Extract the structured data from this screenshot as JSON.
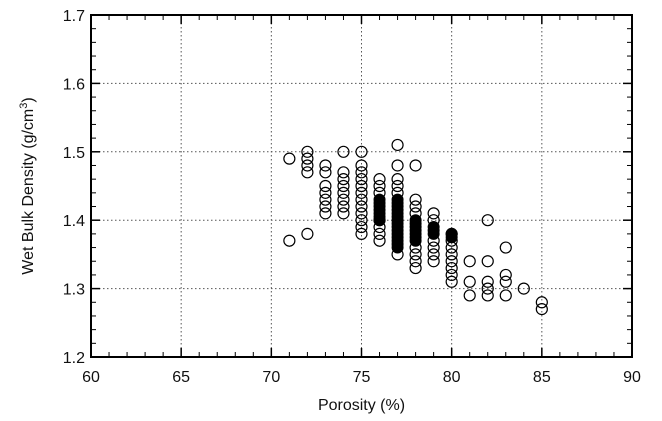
{
  "chart_data": {
    "type": "scatter",
    "title": "",
    "xlabel": "Porosity (%)",
    "ylabel": "Wet Bulk Density (g/cm",
    "ylabel_superscript": "3",
    "ylabel_suffix": ")",
    "xlim": [
      60,
      90
    ],
    "ylim": [
      1.2,
      1.7
    ],
    "xticks": [
      60,
      65,
      70,
      75,
      80,
      85,
      90
    ],
    "yticks": [
      1.2,
      1.3,
      1.4,
      1.5,
      1.6,
      1.7
    ],
    "xtick_labels": [
      "60",
      "65",
      "70",
      "75",
      "80",
      "85",
      "90"
    ],
    "ytick_labels": [
      "1.2",
      "1.3",
      "1.4",
      "1.5",
      "1.6",
      "1.7"
    ],
    "grid": true,
    "series": [
      {
        "marker": "open-circle",
        "points": [
          [
            71,
            1.49
          ],
          [
            71,
            1.37
          ],
          [
            72,
            1.5
          ],
          [
            72,
            1.49
          ],
          [
            72,
            1.48
          ],
          [
            72,
            1.47
          ],
          [
            72,
            1.38
          ],
          [
            73,
            1.48
          ],
          [
            73,
            1.47
          ],
          [
            73,
            1.45
          ],
          [
            73,
            1.44
          ],
          [
            73,
            1.43
          ],
          [
            73,
            1.42
          ],
          [
            73,
            1.41
          ],
          [
            74,
            1.5
          ],
          [
            74,
            1.47
          ],
          [
            74,
            1.46
          ],
          [
            74,
            1.45
          ],
          [
            74,
            1.44
          ],
          [
            74,
            1.43
          ],
          [
            74,
            1.42
          ],
          [
            74,
            1.41
          ],
          [
            75,
            1.5
          ],
          [
            75,
            1.48
          ],
          [
            75,
            1.47
          ],
          [
            75,
            1.46
          ],
          [
            75,
            1.45
          ],
          [
            75,
            1.44
          ],
          [
            75,
            1.43
          ],
          [
            75,
            1.42
          ],
          [
            75,
            1.41
          ],
          [
            75,
            1.4
          ],
          [
            75,
            1.39
          ],
          [
            75,
            1.38
          ],
          [
            76,
            1.46
          ],
          [
            76,
            1.45
          ],
          [
            76,
            1.44
          ],
          [
            76,
            1.4
          ],
          [
            76,
            1.39
          ],
          [
            76,
            1.38
          ],
          [
            76,
            1.37
          ],
          [
            77,
            1.51
          ],
          [
            77,
            1.48
          ],
          [
            77,
            1.46
          ],
          [
            77,
            1.45
          ],
          [
            77,
            1.44
          ],
          [
            77,
            1.35
          ],
          [
            78,
            1.48
          ],
          [
            78,
            1.43
          ],
          [
            78,
            1.42
          ],
          [
            78,
            1.41
          ],
          [
            78,
            1.36
          ],
          [
            78,
            1.35
          ],
          [
            78,
            1.34
          ],
          [
            78,
            1.33
          ],
          [
            79,
            1.41
          ],
          [
            79,
            1.4
          ],
          [
            79,
            1.37
          ],
          [
            79,
            1.36
          ],
          [
            79,
            1.35
          ],
          [
            79,
            1.34
          ],
          [
            80,
            1.38
          ],
          [
            80,
            1.37
          ],
          [
            80,
            1.36
          ],
          [
            80,
            1.35
          ],
          [
            80,
            1.34
          ],
          [
            80,
            1.33
          ],
          [
            80,
            1.32
          ],
          [
            80,
            1.31
          ],
          [
            81,
            1.34
          ],
          [
            81,
            1.31
          ],
          [
            81,
            1.29
          ],
          [
            82,
            1.4
          ],
          [
            82,
            1.34
          ],
          [
            82,
            1.31
          ],
          [
            82,
            1.3
          ],
          [
            82,
            1.29
          ],
          [
            83,
            1.36
          ],
          [
            83,
            1.32
          ],
          [
            83,
            1.31
          ],
          [
            83,
            1.29
          ],
          [
            84,
            1.3
          ],
          [
            85,
            1.28
          ],
          [
            85,
            1.27
          ]
        ]
      },
      {
        "marker": "dense-filled",
        "points": [
          [
            76,
            1.43
          ],
          [
            76,
            1.425
          ],
          [
            76,
            1.42
          ],
          [
            76,
            1.415
          ],
          [
            76,
            1.41
          ],
          [
            76,
            1.405
          ],
          [
            76,
            1.4
          ],
          [
            77,
            1.43
          ],
          [
            77,
            1.425
          ],
          [
            77,
            1.42
          ],
          [
            77,
            1.415
          ],
          [
            77,
            1.41
          ],
          [
            77,
            1.405
          ],
          [
            77,
            1.4
          ],
          [
            77,
            1.395
          ],
          [
            77,
            1.39
          ],
          [
            77,
            1.385
          ],
          [
            77,
            1.38
          ],
          [
            77,
            1.375
          ],
          [
            77,
            1.37
          ],
          [
            77,
            1.365
          ],
          [
            77,
            1.36
          ],
          [
            78,
            1.4
          ],
          [
            78,
            1.395
          ],
          [
            78,
            1.39
          ],
          [
            78,
            1.385
          ],
          [
            78,
            1.38
          ],
          [
            78,
            1.375
          ],
          [
            78,
            1.37
          ],
          [
            79,
            1.39
          ],
          [
            79,
            1.385
          ],
          [
            79,
            1.38
          ],
          [
            80,
            1.38
          ],
          [
            80,
            1.375
          ]
        ]
      }
    ]
  }
}
